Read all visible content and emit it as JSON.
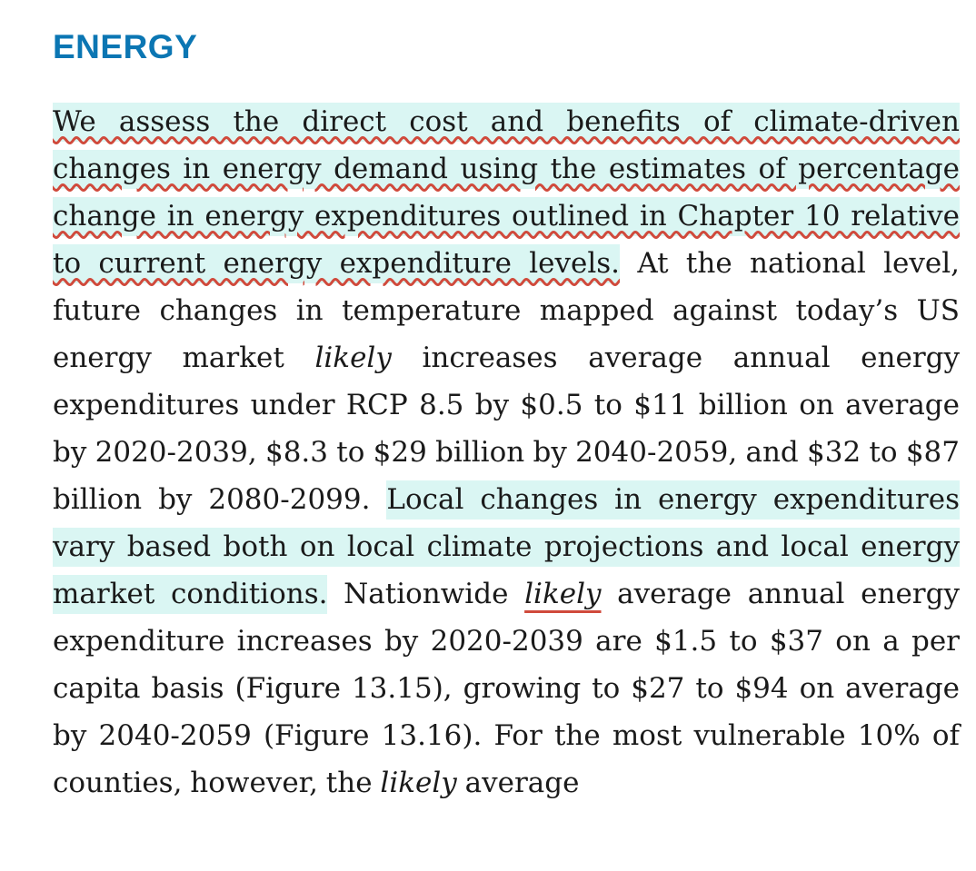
{
  "heading": "ENERGY",
  "paragraph": {
    "s1": "We assess the direct cost and benefits of climate-driven changes in energy demand using the estimates of percentage change in energy expenditures outlined in Chapter 10 relative to current energy expenditure levels.",
    "s2a": " At the national level, future changes in temperature mapped against today’s US energy market ",
    "s2_likely": "likely",
    "s2b": " increases average annual energy expenditures under RCP 8.5 by $0.5 to $11 billion on average by 2020-2039, $8.3 to $29 billion by 2040-2059, and $32 to $87 billion by 2080-2099. ",
    "s3": "Local changes in energy expenditures vary based both on local climate projections and local energy market conditions.",
    "s4a": " Nationwide ",
    "s4_likely": "likely",
    "s4b": " average annual energy expenditure increases by 2020-2039 are $1.5 to $37 on a per capita basis (Figure 13.15), growing to $27 to $94 on average by 2040-2059 (Figure 13.16). For the most vulnerable 10% of counties, however, the ",
    "s5_likely": "likely",
    "s5b": " average"
  },
  "colors": {
    "heading": "#0b76b3",
    "highlight": "#daf6f3",
    "annotation_underline": "#d04a3c"
  }
}
